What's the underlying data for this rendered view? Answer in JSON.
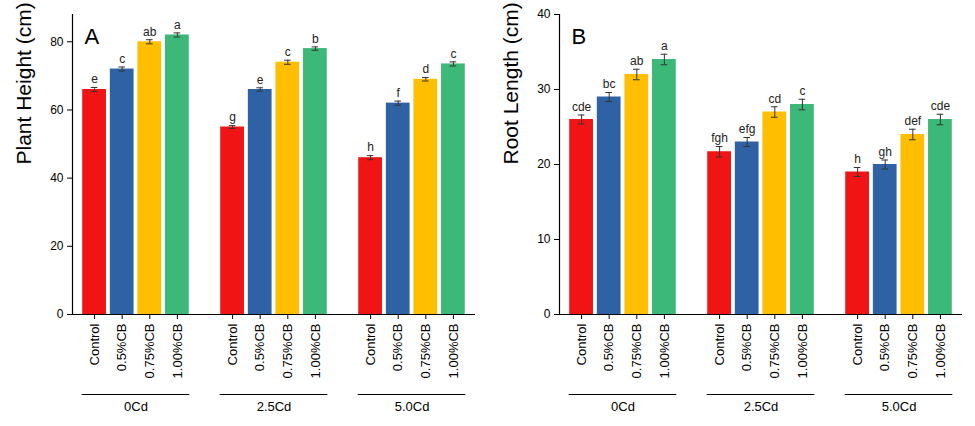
{
  "chart_data": [
    {
      "type": "bar",
      "title": "A",
      "y_label": "Plant Height (cm)",
      "categories": [
        "0Cd",
        "2.5Cd",
        "5.0Cd"
      ],
      "ylim": [
        0,
        88
      ],
      "yticks": [
        0,
        20,
        40,
        60,
        80
      ],
      "series": [
        {
          "name": "Control",
          "color": "#f01414",
          "values": [
            66,
            55,
            46
          ],
          "errors": [
            0.6,
            0.4,
            0.6
          ],
          "letters": [
            "e",
            "g",
            "h"
          ]
        },
        {
          "name": "0.5%CB",
          "color": "#2f62a5",
          "values": [
            72,
            66,
            62
          ],
          "errors": [
            0.6,
            0.5,
            0.6
          ],
          "letters": [
            "c",
            "e",
            "f"
          ]
        },
        {
          "name": "0.75%CB",
          "color": "#ffbf00",
          "values": [
            80,
            74,
            69
          ],
          "errors": [
            0.6,
            0.6,
            0.5
          ],
          "letters": [
            "ab",
            "c",
            "d"
          ]
        },
        {
          "name": "1.00%CB",
          "color": "#3cb878",
          "values": [
            82,
            78,
            73.5
          ],
          "errors": [
            0.6,
            0.5,
            0.6
          ],
          "letters": [
            "a",
            "b",
            "c"
          ]
        }
      ]
    },
    {
      "type": "bar",
      "title": "B",
      "y_label": "Root Length (cm)",
      "categories": [
        "0Cd",
        "2.5Cd",
        "5.0Cd"
      ],
      "ylim": [
        0,
        40
      ],
      "yticks": [
        0,
        10,
        20,
        30,
        40
      ],
      "series": [
        {
          "name": "Control",
          "color": "#f01414",
          "values": [
            26,
            21.7,
            19
          ],
          "errors": [
            0.6,
            0.7,
            0.6
          ],
          "letters": [
            "cde",
            "fgh",
            "h"
          ]
        },
        {
          "name": "0.5%CB",
          "color": "#2f62a5",
          "values": [
            29,
            23,
            20
          ],
          "errors": [
            0.6,
            0.6,
            0.6
          ],
          "letters": [
            "bc",
            "efg",
            "gh"
          ]
        },
        {
          "name": "0.75%CB",
          "color": "#ffbf00",
          "values": [
            32,
            27,
            24
          ],
          "errors": [
            0.7,
            0.7,
            0.7
          ],
          "letters": [
            "ab",
            "cd",
            "def"
          ]
        },
        {
          "name": "1.00%CB",
          "color": "#3cb878",
          "values": [
            34,
            28,
            26
          ],
          "errors": [
            0.7,
            0.7,
            0.7
          ],
          "letters": [
            "a",
            "c",
            "cde"
          ]
        }
      ]
    }
  ]
}
